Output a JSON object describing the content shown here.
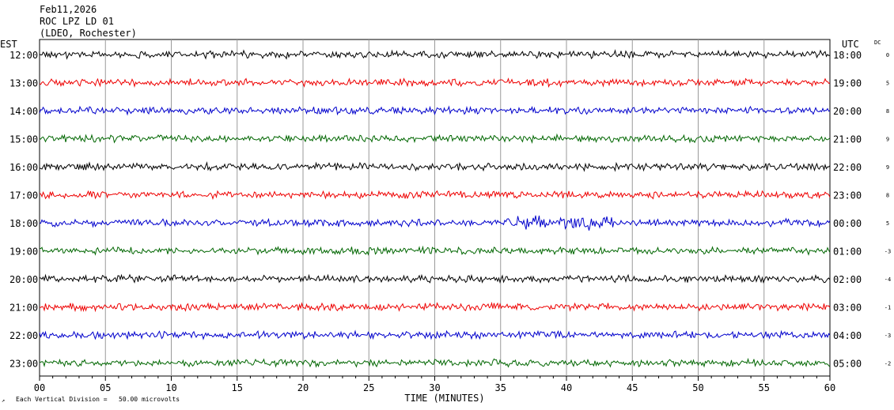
{
  "header": {
    "date": "Feb11,2026",
    "station": "ROC LPZ LD 01",
    "network": "(LDEO, Rochester)"
  },
  "chart_data": {
    "type": "line",
    "left_axis_label": "EST",
    "right_axis_label": "UTC",
    "dc_label": "DC",
    "xlabel": "TIME (MINUTES)",
    "xlim": [
      0,
      60
    ],
    "x_ticks": [
      "00",
      "05",
      "10",
      "15",
      "20",
      "25",
      "30",
      "35",
      "40",
      "45",
      "50",
      "55",
      "60"
    ],
    "scale_note": "Each Vertical Division =   50.00 microvolts",
    "colors": [
      "#000000",
      "#ee0000",
      "#0000cc",
      "#006600"
    ],
    "traces": [
      {
        "est": "12:00",
        "utc": "18:00",
        "dc": "0"
      },
      {
        "est": "13:00",
        "utc": "19:00",
        "dc": "5"
      },
      {
        "est": "14:00",
        "utc": "20:00",
        "dc": "8"
      },
      {
        "est": "15:00",
        "utc": "21:00",
        "dc": "9"
      },
      {
        "est": "16:00",
        "utc": "22:00",
        "dc": "9"
      },
      {
        "est": "17:00",
        "utc": "23:00",
        "dc": "8"
      },
      {
        "est": "18:00",
        "utc": "00:00",
        "dc": "5"
      },
      {
        "est": "19:00",
        "utc": "01:00",
        "dc": "-3"
      },
      {
        "est": "20:00",
        "utc": "02:00",
        "dc": "-4"
      },
      {
        "est": "21:00",
        "utc": "03:00",
        "dc": "-1"
      },
      {
        "est": "22:00",
        "utc": "04:00",
        "dc": "-3"
      },
      {
        "est": "23:00",
        "utc": "05:00",
        "dc": "-2"
      }
    ]
  }
}
